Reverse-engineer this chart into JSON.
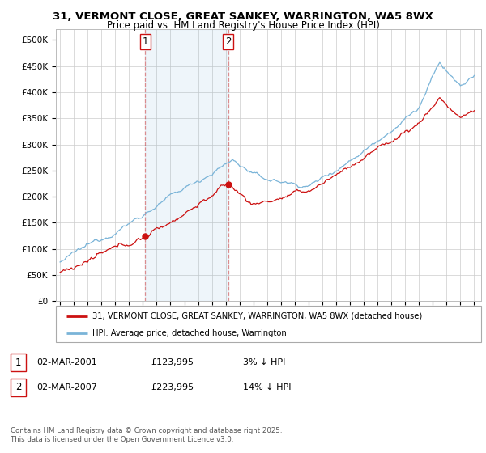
{
  "title_line1": "31, VERMONT CLOSE, GREAT SANKEY, WARRINGTON, WA5 8WX",
  "title_line2": "Price paid vs. HM Land Registry's House Price Index (HPI)",
  "ylim": [
    0,
    520000
  ],
  "ytick_labels": [
    "£0",
    "£50K",
    "£100K",
    "£150K",
    "£200K",
    "£250K",
    "£300K",
    "£350K",
    "£400K",
    "£450K",
    "£500K"
  ],
  "xlim_start": 1994.7,
  "xlim_end": 2025.5,
  "hpi_color": "#7ab4d8",
  "price_color": "#cc1111",
  "vline_color": "#cc1111",
  "vline_alpha": 0.45,
  "sale1_year": 2001.17,
  "sale1_price": 123995,
  "sale2_year": 2007.17,
  "sale2_price": 223995,
  "legend_label1": "31, VERMONT CLOSE, GREAT SANKEY, WARRINGTON, WA5 8WX (detached house)",
  "legend_label2": "HPI: Average price, detached house, Warrington",
  "table_row1": [
    "1",
    "02-MAR-2001",
    "£123,995",
    "3% ↓ HPI"
  ],
  "table_row2": [
    "2",
    "02-MAR-2007",
    "£223,995",
    "14% ↓ HPI"
  ],
  "copyright_text": "Contains HM Land Registry data © Crown copyright and database right 2025.\nThis data is licensed under the Open Government Licence v3.0.",
  "background_color": "#ffffff",
  "grid_color": "#cccccc"
}
